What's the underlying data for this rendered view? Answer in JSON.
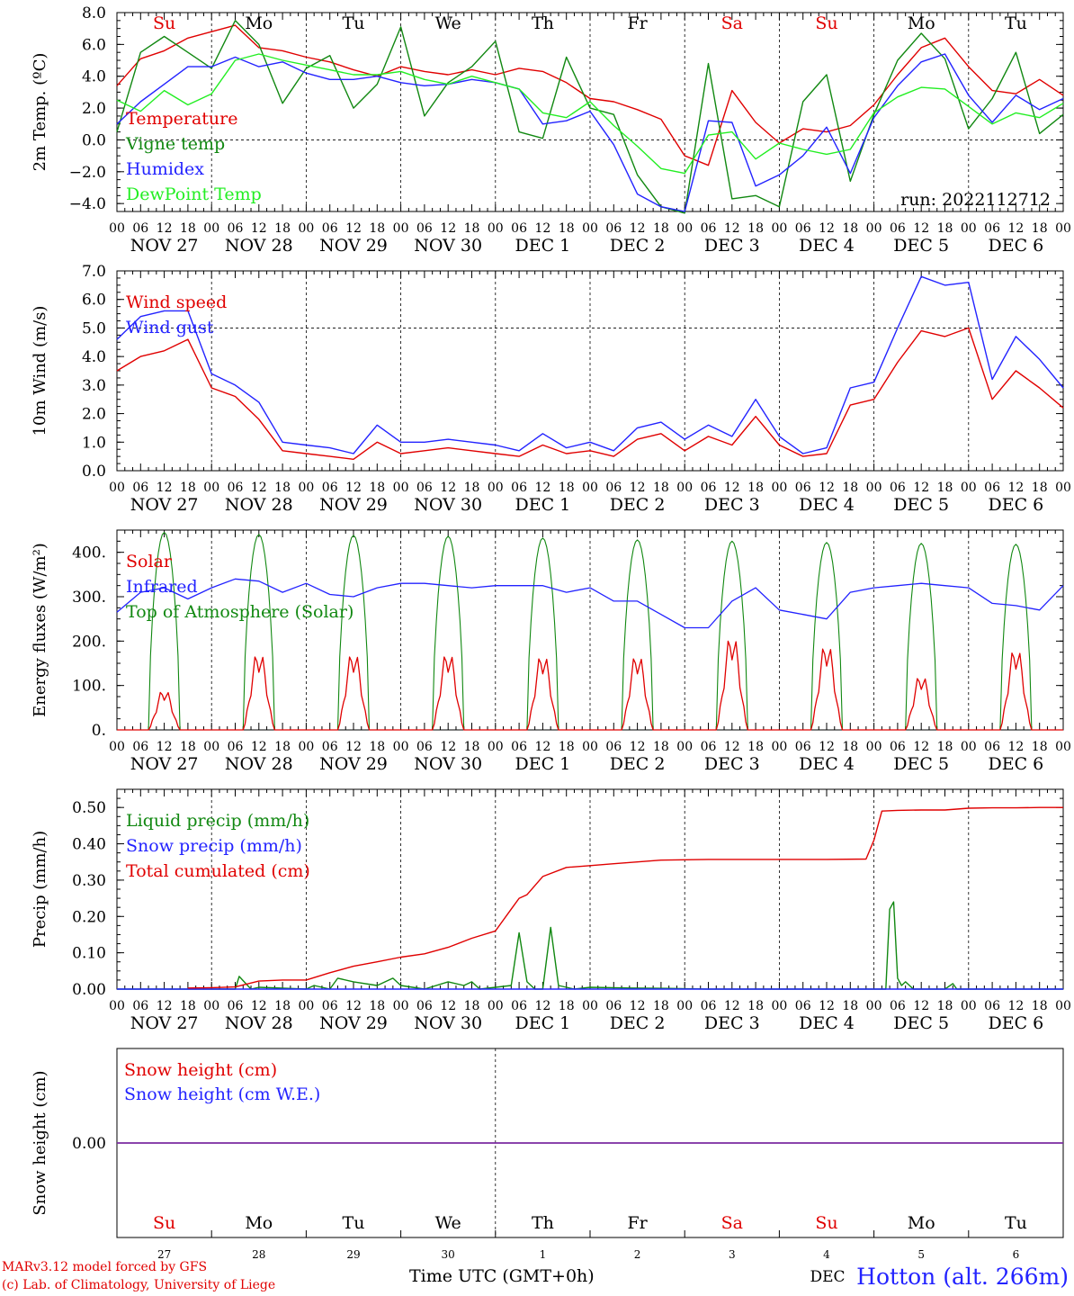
{
  "site_label": "Hotton (alt. 266m)",
  "run_label": "run: 2022112712",
  "footer": {
    "line1": "MARv3.12 model forced by GFS",
    "line2": "(c) Lab. of Climatology, University of Liege"
  },
  "x_axis_title": "Time UTC (GMT+0h)",
  "hour_ticks": [
    "00",
    "06",
    "12",
    "18"
  ],
  "final_hour_tick": "00",
  "dates": [
    "NOV 27",
    "NOV 28",
    "NOV 29",
    "NOV 30",
    "DEC  1",
    "DEC  2",
    "DEC  3",
    "DEC  4",
    "DEC  5",
    "DEC  6"
  ],
  "weekdays": [
    "Su",
    "Mo",
    "Tu",
    "We",
    "Th",
    "Fr",
    "Sa",
    "Su",
    "Mo",
    "Tu"
  ],
  "weekday_colors": [
    "#e00000",
    "#000000",
    "#000000",
    "#000000",
    "#000000",
    "#000000",
    "#e00000",
    "#e00000",
    "#000000",
    "#000000"
  ],
  "bottom_day_numbers": [
    "27",
    "28",
    "29",
    "30",
    "1",
    "2",
    "3",
    "4",
    "5",
    "6"
  ],
  "bottom_month_label": "DEC",
  "colors": {
    "red": "#e00000",
    "green": "#118811",
    "blue": "#2323ff",
    "lightgreen": "#22ee22",
    "purple": "#7a2aa0"
  },
  "chart_data": [
    {
      "type": "line",
      "ylabel": "2m Temp. (ºC)",
      "ylim": [
        -4.5,
        8.0
      ],
      "yticks": [
        -4.0,
        -2.0,
        0.0,
        2.0,
        4.0,
        6.0,
        8.0
      ],
      "ytick_labels": [
        "−4.0",
        "−2.0",
        "0.0",
        "2.0",
        "4.0",
        "6.0",
        "8.0"
      ],
      "reference_line": 0.0,
      "x_unit": "hours since 2022-11-27 00 UTC",
      "x": [
        0,
        6,
        12,
        18,
        24,
        30,
        36,
        42,
        48,
        54,
        60,
        66,
        72,
        78,
        84,
        90,
        96,
        102,
        108,
        114,
        120,
        126,
        132,
        138,
        144,
        150,
        156,
        162,
        168,
        174,
        180,
        186,
        192,
        198,
        204,
        210,
        216,
        222,
        228,
        234,
        240
      ],
      "series": [
        {
          "name": "Temperature",
          "color": "red",
          "values": [
            3.4,
            5.1,
            5.6,
            6.4,
            6.8,
            7.2,
            5.8,
            5.6,
            5.2,
            4.9,
            4.4,
            4.0,
            4.6,
            4.3,
            4.1,
            4.4,
            4.1,
            4.5,
            4.3,
            3.6,
            2.6,
            2.4,
            1.9,
            1.3,
            -1.0,
            -1.6,
            3.1,
            1.1,
            -0.2,
            0.7,
            0.5,
            0.9,
            2.2,
            4.1,
            5.8,
            6.4,
            4.6,
            3.1,
            2.9,
            3.8,
            2.8
          ]
        },
        {
          "name": "Vigne temp",
          "color": "green",
          "values": [
            0.5,
            5.5,
            6.5,
            5.5,
            4.5,
            7.5,
            6.0,
            2.3,
            4.5,
            5.3,
            2.0,
            3.5,
            7.1,
            1.5,
            3.6,
            4.6,
            6.2,
            0.5,
            0.1,
            5.2,
            2.0,
            1.6,
            -2.2,
            -4.2,
            -4.6,
            4.8,
            -3.7,
            -3.5,
            -4.2,
            2.4,
            4.1,
            -2.6,
            1.6,
            5.0,
            6.7,
            5.1,
            0.7,
            2.6,
            5.5,
            0.4,
            1.6
          ]
        },
        {
          "name": "Humidex",
          "color": "blue",
          "values": [
            1.0,
            2.4,
            3.5,
            4.6,
            4.6,
            5.2,
            4.6,
            4.9,
            4.2,
            3.8,
            3.8,
            4.0,
            3.6,
            3.4,
            3.5,
            3.8,
            3.6,
            3.2,
            1.0,
            1.2,
            1.8,
            -0.3,
            -3.4,
            -4.2,
            -4.5,
            1.2,
            1.1,
            -2.9,
            -2.2,
            -1.0,
            0.8,
            -2.1,
            1.4,
            3.4,
            4.9,
            5.4,
            2.8,
            1.1,
            2.8,
            1.9,
            2.6
          ]
        },
        {
          "name": "DewPoint Temp",
          "color": "lightgreen",
          "values": [
            2.5,
            1.8,
            3.1,
            2.2,
            2.9,
            5.0,
            5.4,
            5.0,
            4.7,
            4.4,
            4.1,
            4.1,
            4.3,
            3.8,
            3.5,
            4.0,
            3.6,
            3.2,
            1.7,
            1.4,
            2.4,
            0.9,
            -0.4,
            -1.8,
            -2.1,
            0.3,
            0.5,
            -1.2,
            -0.2,
            -0.6,
            -0.9,
            -0.6,
            1.7,
            2.7,
            3.3,
            3.2,
            2.1,
            1.0,
            1.7,
            1.4,
            2.3
          ]
        }
      ]
    },
    {
      "type": "line",
      "ylabel": "10m Wind (m/s)",
      "ylim": [
        0.0,
        7.0
      ],
      "yticks": [
        0.0,
        1.0,
        2.0,
        3.0,
        4.0,
        5.0,
        6.0,
        7.0
      ],
      "ytick_labels": [
        "0.0",
        "1.0",
        "2.0",
        "3.0",
        "4.0",
        "5.0",
        "6.0",
        "7.0"
      ],
      "reference_line": 5.0,
      "x_unit": "hours since 2022-11-27 00 UTC",
      "x": [
        0,
        6,
        12,
        18,
        24,
        30,
        36,
        42,
        48,
        54,
        60,
        66,
        72,
        78,
        84,
        90,
        96,
        102,
        108,
        114,
        120,
        126,
        132,
        138,
        144,
        150,
        156,
        162,
        168,
        174,
        180,
        186,
        192,
        198,
        204,
        210,
        216,
        222,
        228,
        234,
        240
      ],
      "series": [
        {
          "name": "Wind speed",
          "color": "red",
          "values": [
            3.5,
            4.0,
            4.2,
            4.6,
            2.9,
            2.6,
            1.8,
            0.7,
            0.6,
            0.5,
            0.4,
            1.0,
            0.6,
            0.7,
            0.8,
            0.7,
            0.6,
            0.5,
            0.9,
            0.6,
            0.7,
            0.5,
            1.1,
            1.3,
            0.7,
            1.2,
            0.9,
            1.9,
            0.9,
            0.5,
            0.6,
            2.3,
            2.5,
            3.8,
            4.9,
            4.7,
            5.0,
            2.5,
            3.5,
            2.9,
            2.2
          ]
        },
        {
          "name": "Wind gust",
          "color": "blue",
          "values": [
            4.6,
            5.4,
            5.6,
            5.6,
            3.4,
            3.0,
            2.4,
            1.0,
            0.9,
            0.8,
            0.6,
            1.6,
            1.0,
            1.0,
            1.1,
            1.0,
            0.9,
            0.7,
            1.3,
            0.8,
            1.0,
            0.7,
            1.5,
            1.7,
            1.1,
            1.6,
            1.2,
            2.5,
            1.2,
            0.6,
            0.8,
            2.9,
            3.1,
            5.0,
            6.8,
            6.5,
            6.6,
            3.2,
            4.7,
            3.9,
            2.9
          ]
        }
      ]
    },
    {
      "type": "line",
      "ylabel": "Energy fluxes (W/m²)",
      "ylim": [
        0,
        450
      ],
      "yticks": [
        0,
        100,
        200,
        300,
        400
      ],
      "ytick_labels": [
        "0.",
        "100.",
        "200.",
        "300.",
        "400."
      ],
      "series_labels_only": true,
      "x_unit": "hours since 2022-11-27 00 UTC",
      "daylight": {
        "sunrise_hour": 8,
        "sunset_hour": 16,
        "toa_peak": [
          445,
          440,
          438,
          436,
          432,
          428,
          425,
          422,
          420,
          418
        ],
        "solar_peak": [
          95,
          185,
          185,
          185,
          180,
          180,
          225,
          205,
          130,
          195
        ]
      },
      "series": [
        {
          "name": "Solar",
          "color": "red",
          "values": []
        },
        {
          "name": "Infrared",
          "color": "blue",
          "x": [
            0,
            6,
            12,
            18,
            24,
            30,
            36,
            42,
            48,
            54,
            60,
            66,
            72,
            78,
            84,
            90,
            96,
            102,
            108,
            114,
            120,
            126,
            132,
            138,
            144,
            150,
            156,
            162,
            168,
            174,
            180,
            186,
            192,
            198,
            204,
            210,
            216,
            222,
            228,
            234,
            240
          ],
          "values": [
            265,
            310,
            320,
            295,
            320,
            340,
            335,
            310,
            330,
            305,
            300,
            320,
            330,
            330,
            325,
            320,
            325,
            325,
            325,
            310,
            320,
            290,
            290,
            260,
            230,
            230,
            290,
            320,
            270,
            260,
            250,
            310,
            320,
            325,
            330,
            325,
            320,
            285,
            280,
            270,
            325
          ]
        },
        {
          "name": "Top of Atmosphere (Solar)",
          "color": "green",
          "values": []
        }
      ]
    },
    {
      "type": "line",
      "ylabel": "Precip (mm/h)",
      "ylim": [
        0.0,
        0.55
      ],
      "yticks": [
        0.0,
        0.1,
        0.2,
        0.3,
        0.4,
        0.5
      ],
      "ytick_labels": [
        "0.00",
        "0.10",
        "0.20",
        "0.30",
        "0.40",
        "0.50"
      ],
      "x_unit": "hours since 2022-11-27 00 UTC",
      "series": [
        {
          "name": "Liquid precip (mm/h)",
          "color": "green",
          "x": [
            0,
            18,
            24,
            30,
            31,
            34,
            36,
            48,
            50,
            54,
            56,
            60,
            66,
            70,
            72,
            78,
            84,
            88,
            90,
            92,
            96,
            100,
            102,
            104,
            106,
            108,
            110,
            112,
            114,
            116,
            120,
            130,
            140,
            150,
            190,
            195,
            196,
            197,
            198,
            199,
            200,
            202,
            210,
            212,
            213,
            240
          ],
          "values": [
            0,
            0,
            0,
            0,
            0.035,
            0,
            0.005,
            0,
            0.01,
            0,
            0.03,
            0.02,
            0.01,
            0.03,
            0.01,
            0,
            0.02,
            0.01,
            0.02,
            0,
            0.005,
            0.01,
            0.155,
            0.02,
            0,
            0,
            0.17,
            0.01,
            0.005,
            0,
            0.005,
            0.003,
            0.002,
            0,
            0,
            0,
            0.22,
            0.24,
            0.03,
            0.01,
            0.02,
            0,
            0,
            0.015,
            0,
            0
          ]
        },
        {
          "name": "Snow precip (mm/h)",
          "color": "blue",
          "x": [
            0,
            240
          ],
          "values": [
            0,
            0
          ]
        },
        {
          "name": "Total cumulated (cm)",
          "color": "red",
          "x": [
            18,
            24,
            30,
            36,
            42,
            48,
            54,
            60,
            66,
            72,
            78,
            84,
            90,
            96,
            100,
            102,
            104,
            108,
            114,
            120,
            126,
            132,
            138,
            144,
            150,
            156,
            162,
            168,
            174,
            180,
            190,
            192,
            194,
            198,
            204,
            210,
            216,
            222,
            228,
            234,
            240
          ],
          "values": [
            0.003,
            0.004,
            0.006,
            0.022,
            0.025,
            0.025,
            0.045,
            0.063,
            0.075,
            0.088,
            0.097,
            0.115,
            0.14,
            0.16,
            0.22,
            0.25,
            0.26,
            0.31,
            0.335,
            0.34,
            0.345,
            0.35,
            0.355,
            0.356,
            0.357,
            0.357,
            0.357,
            0.357,
            0.357,
            0.357,
            0.358,
            0.41,
            0.49,
            0.492,
            0.493,
            0.493,
            0.498,
            0.499,
            0.499,
            0.5,
            0.5
          ]
        }
      ]
    },
    {
      "type": "line",
      "ylabel": "Snow height (cm)",
      "ylim": [
        -1,
        1
      ],
      "yticks": [
        0.0
      ],
      "ytick_labels": [
        "0.00"
      ],
      "x_unit": "hours since 2022-11-27 00 UTC",
      "series": [
        {
          "name": "Snow height (cm)",
          "color": "red",
          "x": [
            0,
            240
          ],
          "values": [
            0,
            0
          ]
        },
        {
          "name": "Snow height (cm W.E.)",
          "color": "blue",
          "x": [
            0,
            240
          ],
          "values": [
            0,
            0
          ]
        }
      ]
    }
  ]
}
